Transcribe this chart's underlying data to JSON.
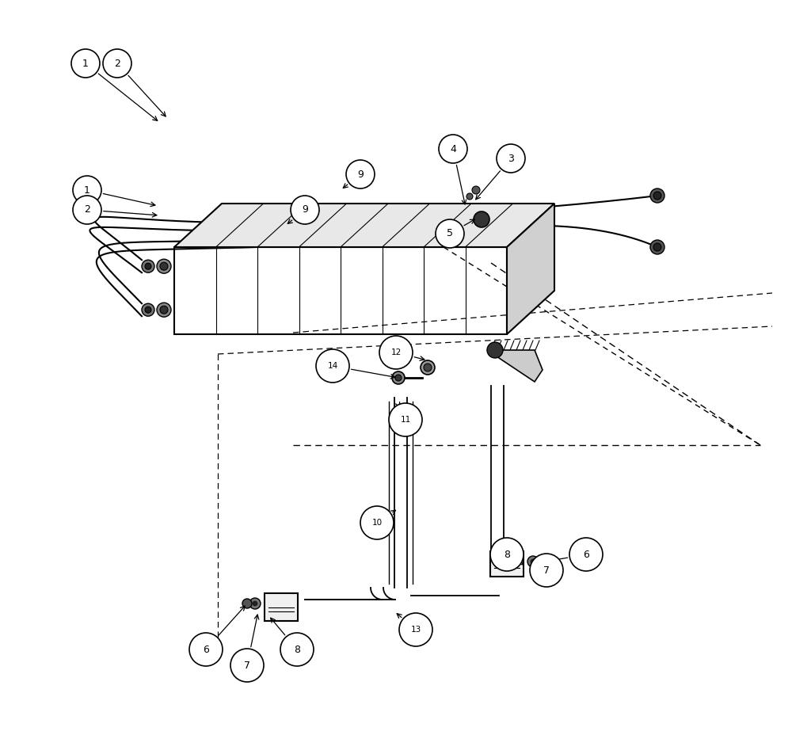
{
  "bg_color": "#ffffff",
  "line_color": "#000000",
  "fig_width": 10.0,
  "fig_height": 9.52
}
